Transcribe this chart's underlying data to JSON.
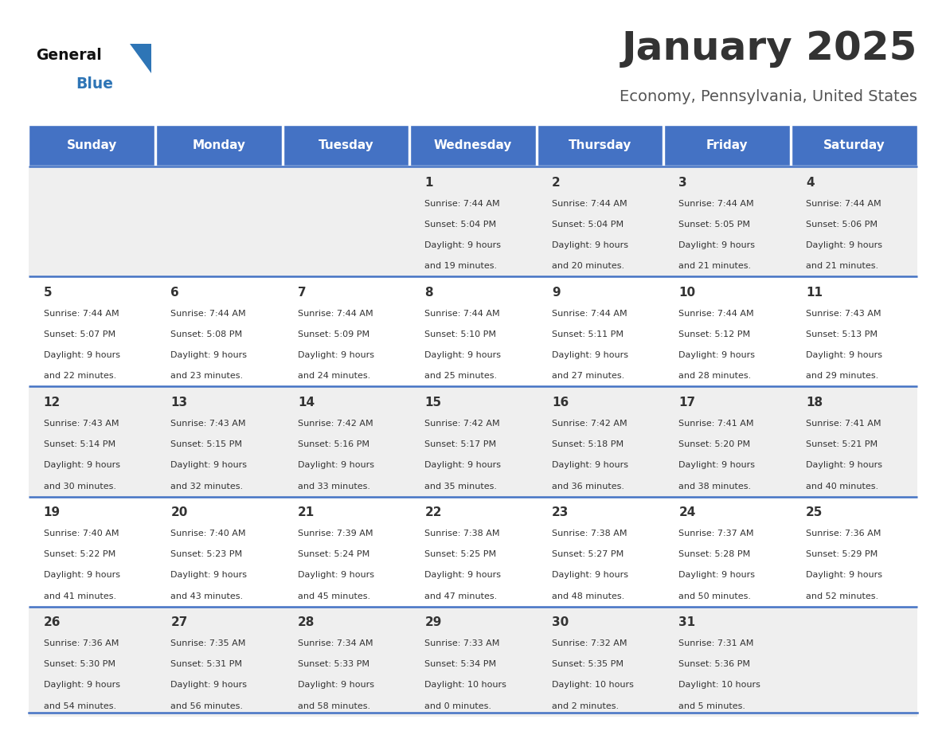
{
  "title": "January 2025",
  "subtitle": "Economy, Pennsylvania, United States",
  "days_of_week": [
    "Sunday",
    "Monday",
    "Tuesday",
    "Wednesday",
    "Thursday",
    "Friday",
    "Saturday"
  ],
  "header_bg": "#4472C4",
  "header_text_color": "#FFFFFF",
  "row_bg": [
    "#EFEFEF",
    "#FFFFFF"
  ],
  "cell_border_color": "#4472C4",
  "text_color": "#333333",
  "title_color": "#333333",
  "subtitle_color": "#555555",
  "logo_text_color": "#111111",
  "logo_blue_color": "#2E75B6",
  "calendar_data": [
    {
      "week": 0,
      "day": 3,
      "date": 1,
      "sunrise": "7:44 AM",
      "sunset": "5:04 PM",
      "daylight_hrs": 9,
      "daylight_min": 19
    },
    {
      "week": 0,
      "day": 4,
      "date": 2,
      "sunrise": "7:44 AM",
      "sunset": "5:04 PM",
      "daylight_hrs": 9,
      "daylight_min": 20
    },
    {
      "week": 0,
      "day": 5,
      "date": 3,
      "sunrise": "7:44 AM",
      "sunset": "5:05 PM",
      "daylight_hrs": 9,
      "daylight_min": 21
    },
    {
      "week": 0,
      "day": 6,
      "date": 4,
      "sunrise": "7:44 AM",
      "sunset": "5:06 PM",
      "daylight_hrs": 9,
      "daylight_min": 21
    },
    {
      "week": 1,
      "day": 0,
      "date": 5,
      "sunrise": "7:44 AM",
      "sunset": "5:07 PM",
      "daylight_hrs": 9,
      "daylight_min": 22
    },
    {
      "week": 1,
      "day": 1,
      "date": 6,
      "sunrise": "7:44 AM",
      "sunset": "5:08 PM",
      "daylight_hrs": 9,
      "daylight_min": 23
    },
    {
      "week": 1,
      "day": 2,
      "date": 7,
      "sunrise": "7:44 AM",
      "sunset": "5:09 PM",
      "daylight_hrs": 9,
      "daylight_min": 24
    },
    {
      "week": 1,
      "day": 3,
      "date": 8,
      "sunrise": "7:44 AM",
      "sunset": "5:10 PM",
      "daylight_hrs": 9,
      "daylight_min": 25
    },
    {
      "week": 1,
      "day": 4,
      "date": 9,
      "sunrise": "7:44 AM",
      "sunset": "5:11 PM",
      "daylight_hrs": 9,
      "daylight_min": 27
    },
    {
      "week": 1,
      "day": 5,
      "date": 10,
      "sunrise": "7:44 AM",
      "sunset": "5:12 PM",
      "daylight_hrs": 9,
      "daylight_min": 28
    },
    {
      "week": 1,
      "day": 6,
      "date": 11,
      "sunrise": "7:43 AM",
      "sunset": "5:13 PM",
      "daylight_hrs": 9,
      "daylight_min": 29
    },
    {
      "week": 2,
      "day": 0,
      "date": 12,
      "sunrise": "7:43 AM",
      "sunset": "5:14 PM",
      "daylight_hrs": 9,
      "daylight_min": 30
    },
    {
      "week": 2,
      "day": 1,
      "date": 13,
      "sunrise": "7:43 AM",
      "sunset": "5:15 PM",
      "daylight_hrs": 9,
      "daylight_min": 32
    },
    {
      "week": 2,
      "day": 2,
      "date": 14,
      "sunrise": "7:42 AM",
      "sunset": "5:16 PM",
      "daylight_hrs": 9,
      "daylight_min": 33
    },
    {
      "week": 2,
      "day": 3,
      "date": 15,
      "sunrise": "7:42 AM",
      "sunset": "5:17 PM",
      "daylight_hrs": 9,
      "daylight_min": 35
    },
    {
      "week": 2,
      "day": 4,
      "date": 16,
      "sunrise": "7:42 AM",
      "sunset": "5:18 PM",
      "daylight_hrs": 9,
      "daylight_min": 36
    },
    {
      "week": 2,
      "day": 5,
      "date": 17,
      "sunrise": "7:41 AM",
      "sunset": "5:20 PM",
      "daylight_hrs": 9,
      "daylight_min": 38
    },
    {
      "week": 2,
      "day": 6,
      "date": 18,
      "sunrise": "7:41 AM",
      "sunset": "5:21 PM",
      "daylight_hrs": 9,
      "daylight_min": 40
    },
    {
      "week": 3,
      "day": 0,
      "date": 19,
      "sunrise": "7:40 AM",
      "sunset": "5:22 PM",
      "daylight_hrs": 9,
      "daylight_min": 41
    },
    {
      "week": 3,
      "day": 1,
      "date": 20,
      "sunrise": "7:40 AM",
      "sunset": "5:23 PM",
      "daylight_hrs": 9,
      "daylight_min": 43
    },
    {
      "week": 3,
      "day": 2,
      "date": 21,
      "sunrise": "7:39 AM",
      "sunset": "5:24 PM",
      "daylight_hrs": 9,
      "daylight_min": 45
    },
    {
      "week": 3,
      "day": 3,
      "date": 22,
      "sunrise": "7:38 AM",
      "sunset": "5:25 PM",
      "daylight_hrs": 9,
      "daylight_min": 47
    },
    {
      "week": 3,
      "day": 4,
      "date": 23,
      "sunrise": "7:38 AM",
      "sunset": "5:27 PM",
      "daylight_hrs": 9,
      "daylight_min": 48
    },
    {
      "week": 3,
      "day": 5,
      "date": 24,
      "sunrise": "7:37 AM",
      "sunset": "5:28 PM",
      "daylight_hrs": 9,
      "daylight_min": 50
    },
    {
      "week": 3,
      "day": 6,
      "date": 25,
      "sunrise": "7:36 AM",
      "sunset": "5:29 PM",
      "daylight_hrs": 9,
      "daylight_min": 52
    },
    {
      "week": 4,
      "day": 0,
      "date": 26,
      "sunrise": "7:36 AM",
      "sunset": "5:30 PM",
      "daylight_hrs": 9,
      "daylight_min": 54
    },
    {
      "week": 4,
      "day": 1,
      "date": 27,
      "sunrise": "7:35 AM",
      "sunset": "5:31 PM",
      "daylight_hrs": 9,
      "daylight_min": 56
    },
    {
      "week": 4,
      "day": 2,
      "date": 28,
      "sunrise": "7:34 AM",
      "sunset": "5:33 PM",
      "daylight_hrs": 9,
      "daylight_min": 58
    },
    {
      "week": 4,
      "day": 3,
      "date": 29,
      "sunrise": "7:33 AM",
      "sunset": "5:34 PM",
      "daylight_hrs": 10,
      "daylight_min": 0
    },
    {
      "week": 4,
      "day": 4,
      "date": 30,
      "sunrise": "7:32 AM",
      "sunset": "5:35 PM",
      "daylight_hrs": 10,
      "daylight_min": 2
    },
    {
      "week": 4,
      "day": 5,
      "date": 31,
      "sunrise": "7:31 AM",
      "sunset": "5:36 PM",
      "daylight_hrs": 10,
      "daylight_min": 5
    }
  ]
}
